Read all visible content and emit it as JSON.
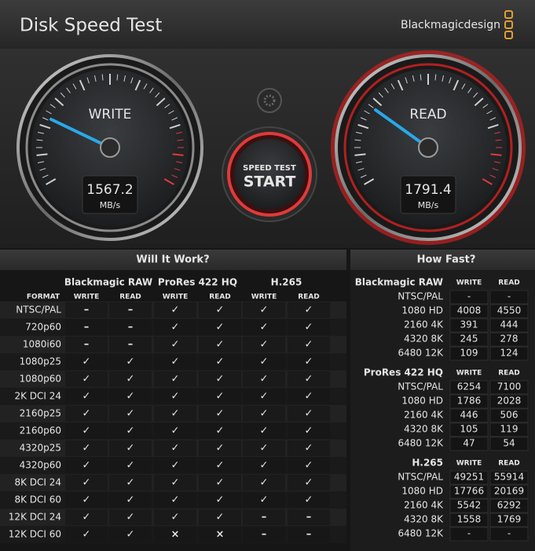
{
  "header": {
    "title": "Disk Speed Test",
    "brand": "Blackmagicdesign"
  },
  "gauges": [
    {
      "label": "WRITE",
      "value": 1567.2,
      "unit": "MB/s"
    },
    {
      "label": "READ",
      "value": 1791.4,
      "unit": "MB/s"
    }
  ],
  "start_button": {
    "line1": "SPEED TEST",
    "line2": "START"
  },
  "will_it_work": {
    "title": "Will It Work?",
    "format_label": "FORMAT",
    "groups": [
      "Blackmagic RAW",
      "ProRes 422 HQ",
      "H.265"
    ],
    "columns": [
      "WRITE",
      "READ"
    ],
    "rows": [
      {
        "format": "NTSC/PAL",
        "cells": [
          "–",
          "–",
          "✓",
          "✓",
          "✓",
          "✓"
        ]
      },
      {
        "format": "720p60",
        "cells": [
          "–",
          "–",
          "✓",
          "✓",
          "✓",
          "✓"
        ]
      },
      {
        "format": "1080i60",
        "cells": [
          "–",
          "–",
          "✓",
          "✓",
          "✓",
          "✓"
        ]
      },
      {
        "format": "1080p25",
        "cells": [
          "✓",
          "✓",
          "✓",
          "✓",
          "✓",
          "✓"
        ]
      },
      {
        "format": "1080p60",
        "cells": [
          "✓",
          "✓",
          "✓",
          "✓",
          "✓",
          "✓"
        ]
      },
      {
        "format": "2K DCI 24",
        "cells": [
          "✓",
          "✓",
          "✓",
          "✓",
          "✓",
          "✓"
        ]
      },
      {
        "format": "2160p25",
        "cells": [
          "✓",
          "✓",
          "✓",
          "✓",
          "✓",
          "✓"
        ]
      },
      {
        "format": "2160p60",
        "cells": [
          "✓",
          "✓",
          "✓",
          "✓",
          "✓",
          "✓"
        ]
      },
      {
        "format": "4320p25",
        "cells": [
          "✓",
          "✓",
          "✓",
          "✓",
          "✓",
          "✓"
        ]
      },
      {
        "format": "4320p60",
        "cells": [
          "✓",
          "✓",
          "✓",
          "✓",
          "✓",
          "✓"
        ]
      },
      {
        "format": "8K DCI 24",
        "cells": [
          "✓",
          "✓",
          "✓",
          "✓",
          "✓",
          "✓"
        ]
      },
      {
        "format": "8K DCI 60",
        "cells": [
          "✓",
          "✓",
          "✓",
          "✓",
          "✓",
          "✓"
        ]
      },
      {
        "format": "12K DCI 24",
        "cells": [
          "✓",
          "✓",
          "✓",
          "✓",
          "–",
          "–"
        ]
      },
      {
        "format": "12K DCI 60",
        "cells": [
          "✓",
          "✓",
          "×",
          "×",
          "–",
          "–"
        ]
      }
    ]
  },
  "how_fast": {
    "title": "How Fast?",
    "columns": [
      "WRITE",
      "READ"
    ],
    "sections": [
      {
        "name": "Blackmagic RAW",
        "rows": [
          {
            "label": "NTSC/PAL",
            "write": "-",
            "read": "-"
          },
          {
            "label": "1080 HD",
            "write": 4008,
            "read": 4550
          },
          {
            "label": "2160 4K",
            "write": 391,
            "read": 444
          },
          {
            "label": "4320 8K",
            "write": 245,
            "read": 278
          },
          {
            "label": "6480 12K",
            "write": 109,
            "read": 124
          }
        ]
      },
      {
        "name": "ProRes 422 HQ",
        "rows": [
          {
            "label": "NTSC/PAL",
            "write": 6254,
            "read": 7100
          },
          {
            "label": "1080 HD",
            "write": 1786,
            "read": 2028
          },
          {
            "label": "2160 4K",
            "write": 446,
            "read": 506
          },
          {
            "label": "4320 8K",
            "write": 105,
            "read": 119
          },
          {
            "label": "6480 12K",
            "write": 47,
            "read": 54
          }
        ]
      },
      {
        "name": "H.265",
        "rows": [
          {
            "label": "NTSC/PAL",
            "write": 49251,
            "read": 55914
          },
          {
            "label": "1080 HD",
            "write": 17766,
            "read": 20169
          },
          {
            "label": "2160 4K",
            "write": 5542,
            "read": 6292
          },
          {
            "label": "4320 8K",
            "write": 1558,
            "read": 1769
          },
          {
            "label": "6480 12K",
            "write": "-",
            "read": "-"
          }
        ]
      }
    ]
  }
}
